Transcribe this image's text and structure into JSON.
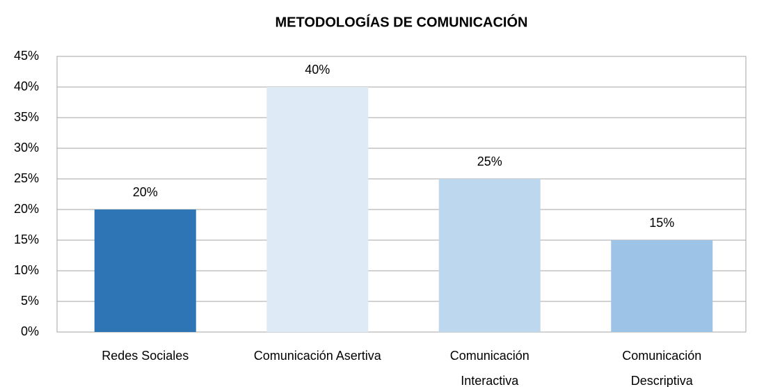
{
  "chart_data": {
    "type": "bar",
    "title": "METODOLOGÍAS DE COMUNICACIÓN",
    "categories": [
      "Redes Sociales",
      "Comunicación Asertiva",
      "Comunicación\nInteractiva",
      "Comunicación\nDescriptiva"
    ],
    "values": [
      20,
      40,
      25,
      15
    ],
    "value_labels": [
      "20%",
      "40%",
      "25%",
      "15%"
    ],
    "colors": [
      "#2e75b6",
      "#deebf7",
      "#bdd7ee",
      "#9dc3e6"
    ],
    "ylim": [
      0,
      45
    ],
    "yticks": [
      {
        "value": 0,
        "label": "0%"
      },
      {
        "value": 5,
        "label": "5%"
      },
      {
        "value": 10,
        "label": "10%"
      },
      {
        "value": 15,
        "label": "15%"
      },
      {
        "value": 20,
        "label": "20%"
      },
      {
        "value": 25,
        "label": "25%"
      },
      {
        "value": 30,
        "label": "30%"
      },
      {
        "value": 35,
        "label": "35%"
      },
      {
        "value": 40,
        "label": "40%"
      },
      {
        "value": 45,
        "label": "45%"
      }
    ],
    "grid": true
  }
}
